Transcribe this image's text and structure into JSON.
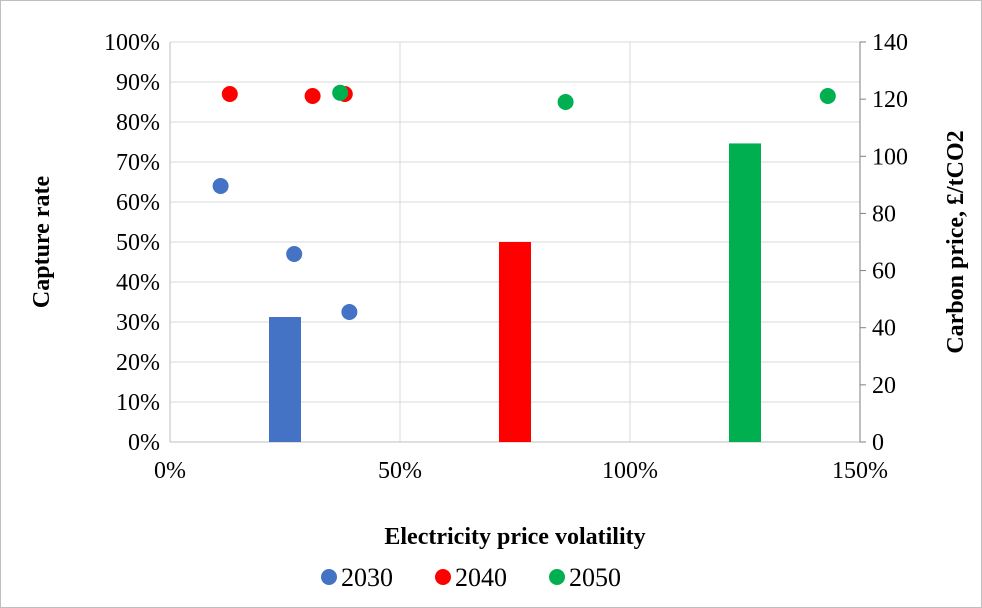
{
  "chart_data": {
    "type": "scatter",
    "xlabel": "Electricity price volatility",
    "ylabel": "Capture rate",
    "y2label": "Carbon price, £/tCO2",
    "xlim": [
      0,
      1.5
    ],
    "ylim": [
      0,
      1.0
    ],
    "y2lim": [
      0,
      140
    ],
    "x_ticks": [
      "0%",
      "50%",
      "100%",
      "150%"
    ],
    "y_ticks": [
      "0%",
      "10%",
      "20%",
      "30%",
      "40%",
      "50%",
      "60%",
      "70%",
      "80%",
      "90%",
      "100%"
    ],
    "y2_ticks": [
      "0",
      "20",
      "40",
      "60",
      "80",
      "100",
      "120",
      "140"
    ],
    "grid": true,
    "legend_position": "bottom",
    "series": [
      {
        "name": "2030",
        "color": "#4472C4",
        "points": [
          {
            "x": 0.11,
            "y": 0.64
          },
          {
            "x": 0.27,
            "y": 0.47
          },
          {
            "x": 0.39,
            "y": 0.325
          }
        ],
        "bar": {
          "x": 0.25,
          "carbon_price": 43.75
        }
      },
      {
        "name": "2040",
        "color": "#FF0000",
        "points": [
          {
            "x": 0.13,
            "y": 0.87
          },
          {
            "x": 0.31,
            "y": 0.865
          },
          {
            "x": 0.38,
            "y": 0.87
          }
        ],
        "bar": {
          "x": 0.75,
          "carbon_price": 70
        }
      },
      {
        "name": "2050",
        "color": "#00B050",
        "points": [
          {
            "x": 0.37,
            "y": 0.873
          },
          {
            "x": 0.86,
            "y": 0.85
          },
          {
            "x": 1.43,
            "y": 0.865
          }
        ],
        "bar": {
          "x": 1.25,
          "carbon_price": 104.5
        }
      }
    ]
  }
}
